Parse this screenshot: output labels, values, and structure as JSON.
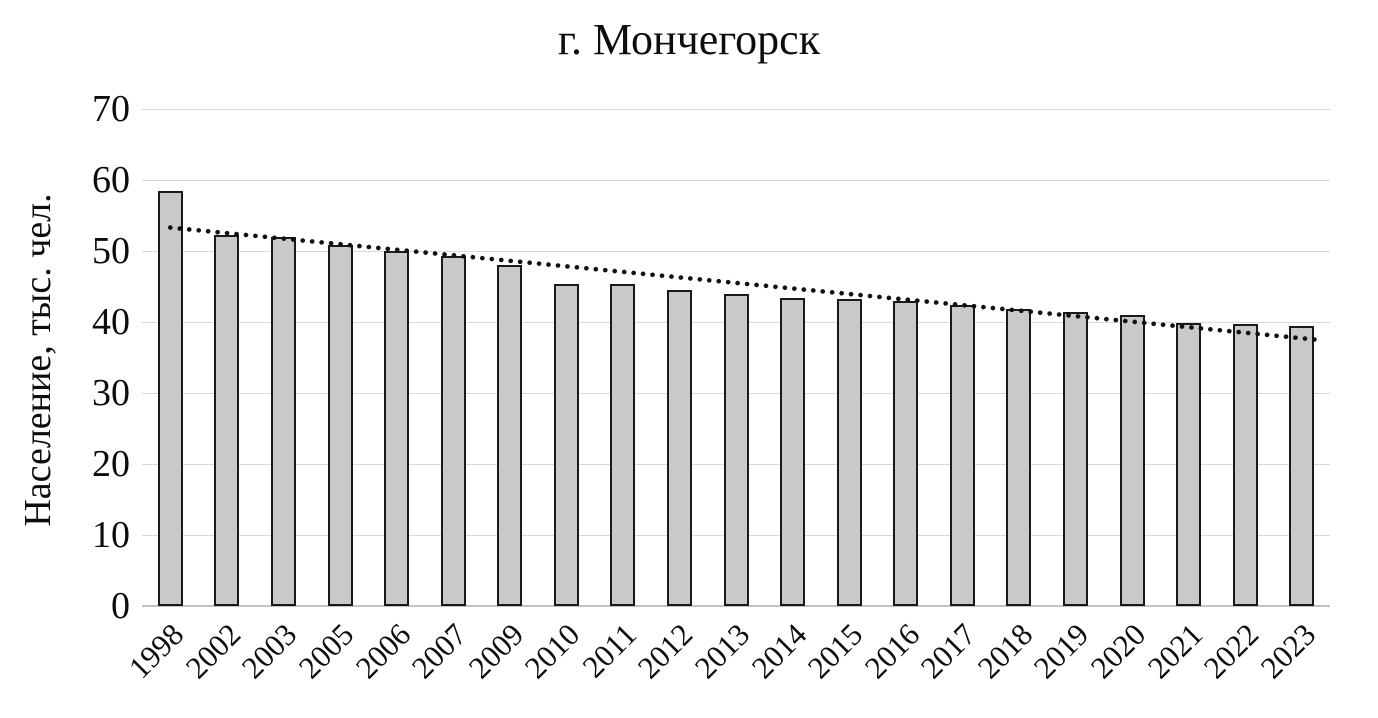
{
  "chart_data": {
    "type": "bar",
    "title": "г. Мончегорск",
    "xlabel": "",
    "ylabel": "Население, тыс. чел.",
    "ylim": [
      0,
      70
    ],
    "yticks": [
      0,
      10,
      20,
      30,
      40,
      50,
      60,
      70
    ],
    "grid": true,
    "legend": false,
    "categories": [
      "1998",
      "2002",
      "2003",
      "2005",
      "2006",
      "2007",
      "2009",
      "2010",
      "2011",
      "2012",
      "2013",
      "2014",
      "2015",
      "2016",
      "2017",
      "2018",
      "2019",
      "2020",
      "2021",
      "2022",
      "2023"
    ],
    "values": [
      58.5,
      52.3,
      52.0,
      50.8,
      50.0,
      49.3,
      48.0,
      45.3,
      45.3,
      44.5,
      44.0,
      43.4,
      43.2,
      42.9,
      42.4,
      41.9,
      41.4,
      41.0,
      39.9,
      39.7,
      39.4
    ],
    "trendline": {
      "type": "linear",
      "style": "dotted",
      "start_value": 53.3,
      "end_value": 37.8,
      "color": "#111111"
    },
    "colors": {
      "bar_fill": "#c9c9c9",
      "bar_stroke": "#1a1a1a",
      "gridline": "#d9d9d9",
      "baseline": "#c3c3c3",
      "background": "#ffffff",
      "text": "#0d0d0d"
    }
  }
}
